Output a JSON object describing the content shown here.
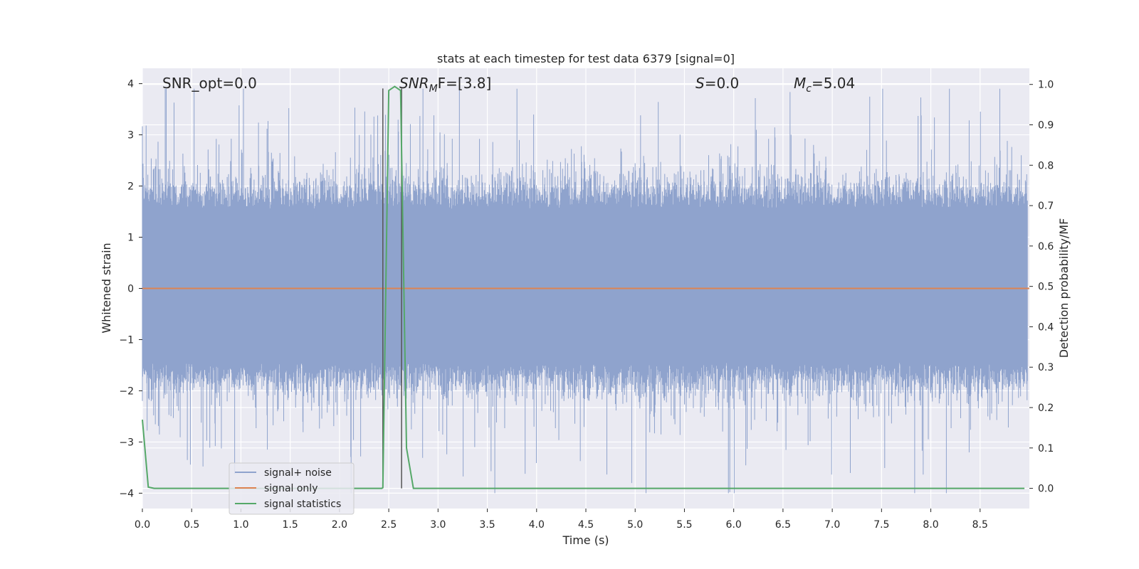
{
  "chart_data": {
    "type": "line",
    "title": "stats at each timestep for test data 6379 [signal=0]",
    "xlabel": "Time (s)",
    "ylabel": "Whitened strain",
    "y2label": "Detection probability/MF",
    "xlim": [
      0,
      9
    ],
    "ylim": [
      -4.3,
      4.3
    ],
    "y2lim": [
      -0.05,
      1.04
    ],
    "xticks": [
      0.0,
      0.5,
      1.0,
      1.5,
      2.0,
      2.5,
      3.0,
      3.5,
      4.0,
      4.5,
      5.0,
      5.5,
      6.0,
      6.5,
      7.0,
      7.5,
      8.0,
      8.5
    ],
    "xtick_labels": [
      "0.0",
      "0.5",
      "1.0",
      "1.5",
      "2.0",
      "2.5",
      "3.0",
      "3.5",
      "4.0",
      "4.5",
      "5.0",
      "5.5",
      "6.0",
      "6.5",
      "7.0",
      "7.5",
      "8.0",
      "8.5"
    ],
    "yticks": [
      -4,
      -3,
      -2,
      -1,
      0,
      1,
      2,
      3,
      4
    ],
    "ytick_labels": [
      "−4",
      "−3",
      "−2",
      "−1",
      "0",
      "1",
      "2",
      "3",
      "4"
    ],
    "y2ticks": [
      0.0,
      0.1,
      0.2,
      0.3,
      0.4,
      0.5,
      0.6,
      0.7,
      0.8,
      0.9,
      1.0
    ],
    "y2tick_labels": [
      "0.0",
      "0.1",
      "0.2",
      "0.3",
      "0.4",
      "0.5",
      "0.6",
      "0.7",
      "0.8",
      "0.9",
      "1.0"
    ],
    "grid": true,
    "legend_position": "lower-left",
    "annotations": {
      "snr_opt": "SNR_opt=0.0",
      "snr_mf_main": "SNR",
      "snr_mf_sub": "M",
      "snr_mf_rest": "F=[3.8]",
      "s_main": "S",
      "s_rest": "=0.0",
      "mc_main": "M",
      "mc_sub": "c",
      "mc_rest": "=5.04"
    },
    "vlines": [
      2.44,
      2.63
    ],
    "series": [
      {
        "name": "signal+ noise",
        "axis": "left",
        "color": "#8fa3cd",
        "envelope_note": "dense noise band",
        "approx_range": [
          -4.0,
          3.9
        ],
        "sample_rate": 4096
      },
      {
        "name": "signal only",
        "axis": "left",
        "color": "#dd8452",
        "x": [
          0,
          9
        ],
        "y": [
          0,
          0
        ]
      },
      {
        "name": "signal statistics",
        "axis": "right",
        "color": "#55a868",
        "x": [
          0.0,
          0.06,
          0.12,
          0.5,
          1.0,
          1.5,
          2.0,
          2.43,
          2.44,
          2.5,
          2.56,
          2.62,
          2.68,
          2.75,
          3.0,
          5.0,
          7.0,
          8.95
        ],
        "y": [
          0.17,
          0.003,
          0.0,
          0.0,
          0.0,
          0.0,
          0.0,
          0.0,
          0.002,
          0.985,
          0.995,
          0.985,
          0.1,
          0.0,
          0.0,
          0.0,
          0.0,
          0.0
        ]
      }
    ],
    "colors": {
      "plot_bg": "#eaeaf2",
      "grid": "#ffffff",
      "vline": "#555555",
      "legend_bg": "#eaeaf2",
      "legend_border": "#cccccc"
    }
  }
}
